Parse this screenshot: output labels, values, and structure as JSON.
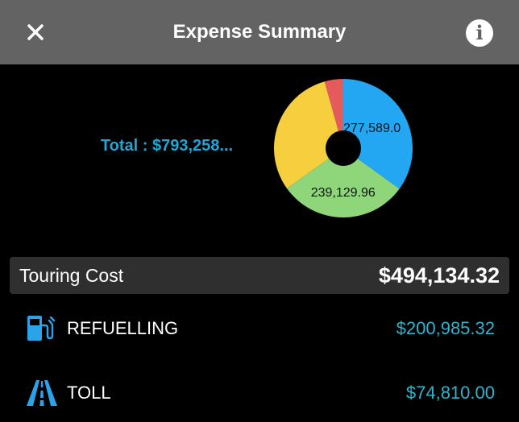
{
  "header": {
    "title": "Expense Summary",
    "close_icon": "close-icon",
    "info_icon": "info-icon",
    "info_glyph": "i"
  },
  "summary": {
    "total_label": "Total : $793,258..."
  },
  "chart_data": {
    "type": "pie",
    "donut": true,
    "slices": [
      {
        "label": "277,589.0",
        "value": 277589.0,
        "color": "#23a7f2",
        "show_label": true
      },
      {
        "label": "239,129.96",
        "value": 239129.96,
        "color": "#8fd67a",
        "show_label": true
      },
      {
        "label": "",
        "value": 242000,
        "color": "#f6cf3f",
        "show_label": false
      },
      {
        "label": "",
        "value": 34539,
        "color": "#e55a5a",
        "show_label": false
      }
    ]
  },
  "section": {
    "label": "Touring Cost",
    "value": "$494,134.32"
  },
  "items": [
    {
      "label": "REFUELLING",
      "value": "$200,985.32",
      "icon": "fuel-pump-icon"
    },
    {
      "label": "TOLL",
      "value": "$74,810.00",
      "icon": "road-icon"
    }
  ],
  "colors": {
    "header_bg": "#636363",
    "accent": "#1ea6d6",
    "icon_blue": "#2aa3e8"
  }
}
